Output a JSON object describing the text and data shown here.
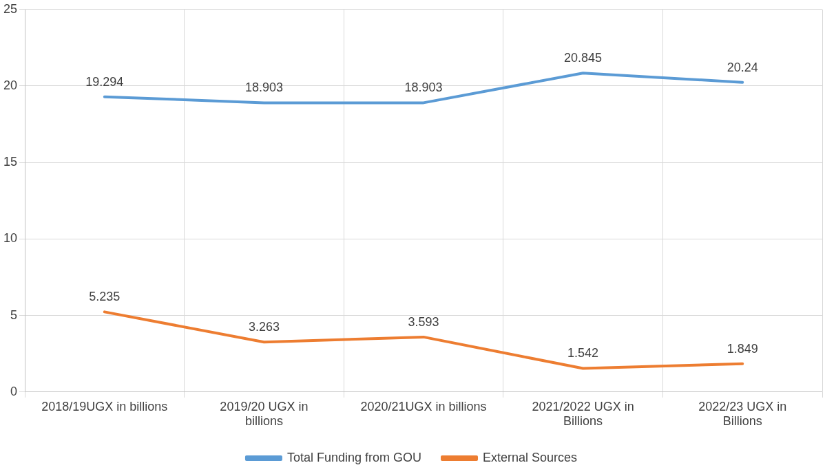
{
  "chart_data": {
    "type": "line",
    "categories": [
      "2018/19UGX in billions",
      "2019/20 UGX in billions",
      "2020/21UGX in billions",
      "2021/2022 UGX in Billions",
      "2022/23 UGX in Billions"
    ],
    "series": [
      {
        "name": "Total Funding from GOU",
        "color": "#5b9bd5",
        "values": [
          19.294,
          18.903,
          18.903,
          20.845,
          20.24
        ]
      },
      {
        "name": "External Sources",
        "color": "#ed7d31",
        "values": [
          5.235,
          3.263,
          3.593,
          1.542,
          1.849
        ]
      }
    ],
    "ylim": [
      0,
      25
    ],
    "yticks": [
      0,
      5,
      10,
      15,
      20,
      25
    ],
    "grid": true,
    "legend": "bottom",
    "data_labels": true,
    "marker": "none",
    "line_style": "solid"
  }
}
